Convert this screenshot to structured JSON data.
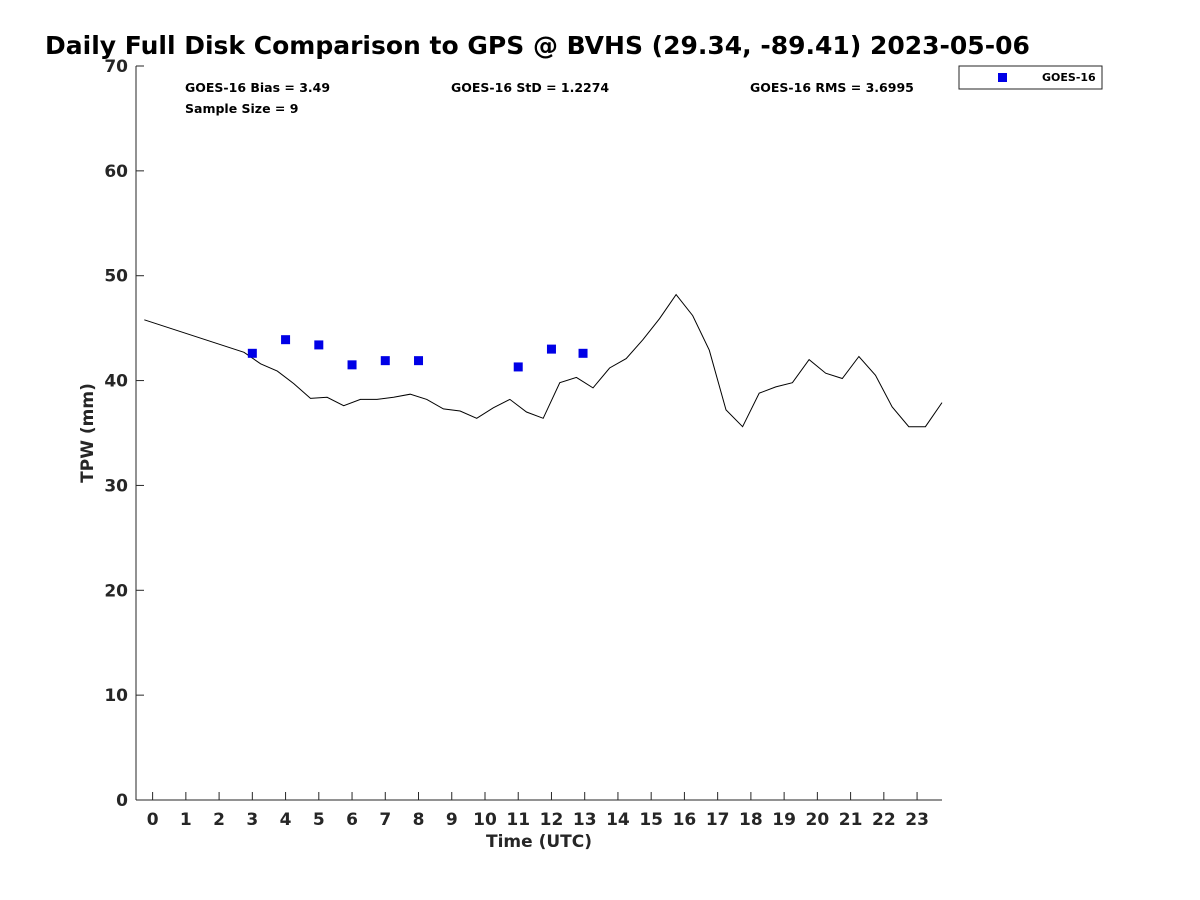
{
  "chart_data": {
    "type": "line",
    "title": "Daily Full Disk Comparison to GPS @ BVHS (29.34, -89.41) 2023-05-06",
    "xlabel": "Time (UTC)",
    "ylabel": "TPW (mm)",
    "xlim": [
      -0.5,
      23.75
    ],
    "ylim": [
      0,
      70
    ],
    "xticks": [
      0,
      1,
      2,
      3,
      4,
      5,
      6,
      7,
      8,
      9,
      10,
      11,
      12,
      13,
      14,
      15,
      16,
      17,
      18,
      19,
      20,
      21,
      22,
      23
    ],
    "yticks": [
      0,
      10,
      20,
      30,
      40,
      50,
      60,
      70
    ],
    "grid": false,
    "legend": {
      "position": "top-right",
      "entries": [
        "GOES-16"
      ]
    },
    "stats": {
      "bias": "GOES-16 Bias = 3.49",
      "std": "GOES-16 StD = 1.2274",
      "rms": "GOES-16 RMS = 3.6995",
      "sample": "Sample Size = 9"
    },
    "series": [
      {
        "kind": "line",
        "color": "#000000",
        "points": [
          [
            -0.25,
            45.8
          ],
          [
            2.75,
            42.7
          ],
          [
            3.25,
            41.6
          ],
          [
            3.75,
            40.9
          ],
          [
            4.25,
            39.7
          ],
          [
            4.75,
            38.3
          ],
          [
            5.25,
            38.4
          ],
          [
            5.75,
            37.6
          ],
          [
            6.25,
            38.2
          ],
          [
            6.75,
            38.2
          ],
          [
            7.25,
            38.4
          ],
          [
            7.75,
            38.7
          ],
          [
            8.25,
            38.2
          ],
          [
            8.75,
            37.3
          ],
          [
            9.25,
            37.1
          ],
          [
            9.75,
            36.4
          ],
          [
            10.25,
            37.4
          ],
          [
            10.75,
            38.2
          ],
          [
            11.25,
            37.0
          ],
          [
            11.75,
            36.4
          ],
          [
            12.25,
            39.8
          ],
          [
            12.75,
            40.3
          ],
          [
            13.25,
            39.3
          ],
          [
            13.75,
            41.2
          ],
          [
            14.25,
            42.1
          ],
          [
            14.75,
            43.9
          ],
          [
            15.25,
            45.9
          ],
          [
            15.75,
            48.2
          ],
          [
            16.25,
            46.2
          ],
          [
            16.75,
            42.9
          ],
          [
            17.25,
            37.2
          ],
          [
            17.75,
            35.6
          ],
          [
            18.25,
            38.8
          ],
          [
            18.75,
            39.4
          ],
          [
            19.25,
            39.8
          ],
          [
            19.75,
            42.0
          ],
          [
            20.25,
            40.7
          ],
          [
            20.75,
            40.2
          ],
          [
            21.25,
            42.3
          ],
          [
            21.75,
            40.5
          ],
          [
            22.25,
            37.5
          ],
          [
            22.75,
            35.6
          ],
          [
            23.25,
            35.6
          ],
          [
            23.75,
            37.9
          ]
        ]
      },
      {
        "name": "GOES-16",
        "kind": "scatter",
        "color": "#0000e6",
        "x": [
          3.0,
          4.0,
          5.0,
          6.0,
          7.0,
          8.0,
          11.0,
          12.0,
          12.95
        ],
        "y": [
          42.6,
          43.9,
          43.4,
          41.5,
          41.9,
          41.9,
          41.3,
          43.0,
          42.6
        ]
      }
    ]
  }
}
